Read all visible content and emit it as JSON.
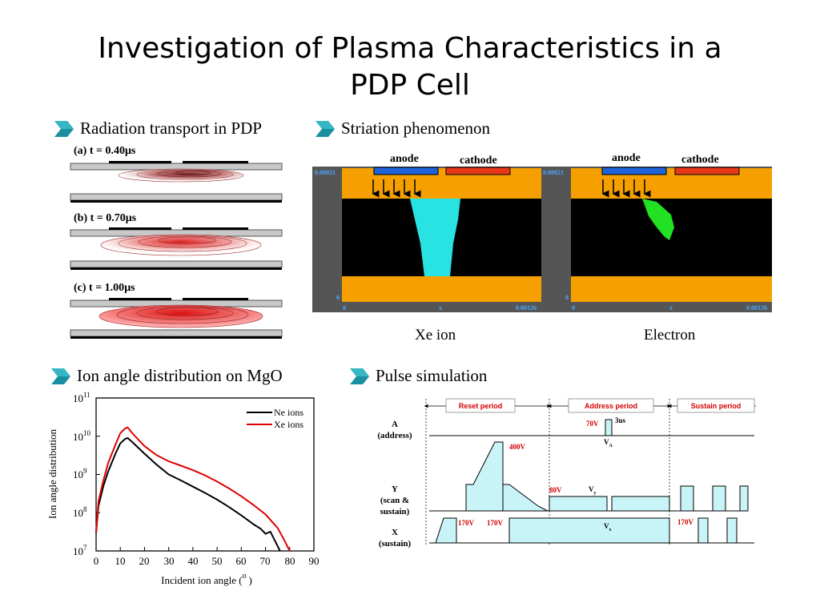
{
  "slide": {
    "title_line1": "Investigation of Plasma Characteristics in a",
    "title_line2": "PDP Cell"
  },
  "radiation": {
    "heading": "Radiation transport in PDP",
    "panels": [
      {
        "label_prefix": "(a) t = 0.40",
        "label_unit": "μs"
      },
      {
        "label_prefix": "(b) t = 0.70",
        "label_unit": "μs"
      },
      {
        "label_prefix": "(c) t = 1.00",
        "label_unit": "μs"
      }
    ]
  },
  "striation": {
    "heading": "Striation phenomenon",
    "anode": "anode",
    "cathode": "cathode",
    "y_max": "0.00021",
    "y_min": "0",
    "x_min": "0",
    "x_mid": "x",
    "x_max": "0.00126",
    "caption_left": "Xe ion",
    "caption_right": "Electron",
    "colors": {
      "frame": "#f5a000",
      "plasma_ion": "#29e3e3",
      "plasma_electron": "#22e022",
      "anode": "#1e64d8",
      "cathode": "#e83818"
    }
  },
  "ion_angle": {
    "heading": "Ion angle distribution on MgO",
    "ylabel": "Ion angle distribution",
    "xlabel_text": "Incident ion angle (",
    "xlabel_sup": "o",
    "xlabel_close": ")",
    "y_tick_base": "10",
    "y_tick_exps": [
      "7",
      "8",
      "9",
      "10",
      "11"
    ],
    "x_ticks": [
      "0",
      "10",
      "20",
      "30",
      "40",
      "50",
      "60",
      "70",
      "80",
      "90"
    ]
  },
  "chart_data": {
    "type": "line",
    "xlabel": "Incident ion angle ( o )",
    "ylabel": "Ion angle distribution",
    "xlim": [
      0,
      90
    ],
    "ylim": [
      10000000,
      100000000000
    ],
    "y_scale": "log",
    "legend_position": "top-right",
    "series": [
      {
        "name": "Ne ions",
        "color": "#000000",
        "x": [
          0,
          1,
          3,
          5,
          8,
          10,
          12,
          13,
          15,
          20,
          25,
          30,
          35,
          40,
          45,
          50,
          55,
          60,
          65,
          68,
          70,
          72,
          74,
          76
        ],
        "y": [
          30000000,
          150000000,
          500000000,
          1200000000,
          3500000000,
          6500000000,
          8500000000,
          9000000000,
          7000000000,
          3500000000,
          1800000000,
          1000000000,
          700000000,
          480000000,
          330000000,
          220000000,
          140000000,
          85000000,
          50000000,
          38000000,
          28000000,
          32000000,
          18000000,
          10000000
        ]
      },
      {
        "name": "Xe ions",
        "color": "#e00000",
        "x": [
          0,
          1,
          3,
          5,
          8,
          10,
          12,
          13,
          15,
          20,
          25,
          30,
          35,
          40,
          45,
          50,
          55,
          60,
          65,
          70,
          75,
          78,
          80
        ],
        "y": [
          30000000,
          200000000,
          700000000,
          2000000000,
          6000000000,
          12000000000,
          16000000000,
          17000000000,
          12000000000,
          5500000000,
          3200000000,
          2200000000,
          1700000000,
          1300000000,
          950000000,
          650000000,
          430000000,
          270000000,
          160000000,
          90000000,
          40000000,
          18000000,
          10000000
        ]
      }
    ]
  },
  "pulse": {
    "heading": "Pulse simulation",
    "reset": "Reset period",
    "address": "Address period",
    "sustain": "Sustain period",
    "a_line1": "A",
    "a_line2": "(address)",
    "y_line1": "Y",
    "y_line2": "(scan &",
    "y_line3": "sustain)",
    "x_line1": "X",
    "x_line2": "(sustain)",
    "v70": "70V",
    "us3": "3us",
    "va_main": "V",
    "va_sub": "A",
    "v400": "400V",
    "v80": "80V",
    "vy_main": "V",
    "vy_sub": "y",
    "v170a": "170V",
    "v170b": "170V",
    "vx_main": "V",
    "vx_sub": "x",
    "v170c": "170V"
  }
}
